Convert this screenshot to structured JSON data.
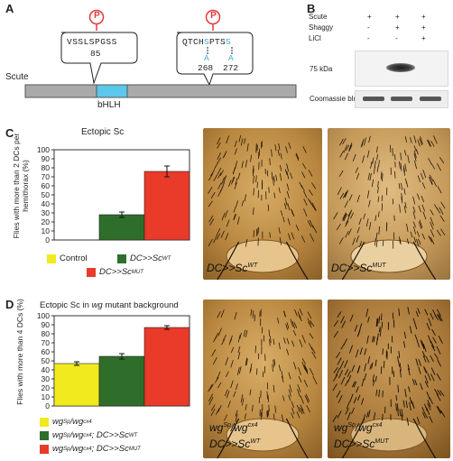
{
  "colors": {
    "control": "#f0ea1e",
    "wt": "#2f6e2a",
    "mut": "#ea3a2a",
    "phospho": "#e23a3a",
    "bhlh": "#5bc7ea",
    "scute_bar": "#aaaaaa"
  },
  "panelA": {
    "letter": "A",
    "protein_label": "Scute",
    "domain_label": "bHLH",
    "phospho_symbol": "P",
    "site1": {
      "seq": "VSSLSPGSS",
      "num": "85"
    },
    "site2": {
      "seq_pre": "QTCH",
      "s1": "S",
      "mid": "PTS",
      "s2": "S",
      "sub1": "A",
      "sub2": "A",
      "num1": "268",
      "num2": "272"
    }
  },
  "panelB": {
    "letter": "B",
    "rows": [
      {
        "label": "Scute",
        "vals": [
          "+",
          "+",
          "+"
        ]
      },
      {
        "label": "Shaggy",
        "vals": [
          "-",
          "+",
          "+"
        ]
      },
      {
        "label": "LiCl",
        "vals": [
          "-",
          "-",
          "+"
        ]
      }
    ],
    "kda_label": "75 kDa",
    "loading_label": "Coomassie blue"
  },
  "panelC": {
    "letter": "C",
    "title": "Ectopic Sc",
    "ylabel": "Flies with more than 2 DCs per hemithorax (%)",
    "legend": [
      "Control",
      "DC>>Sc",
      "DC>>Sc"
    ],
    "legend_sup": [
      "",
      "WT",
      "MUT"
    ],
    "photo_labels": [
      {
        "main": "DC>>Sc",
        "sup": "WT"
      },
      {
        "main": "DC>>Sc",
        "sup": "MUT"
      }
    ]
  },
  "panelD": {
    "letter": "D",
    "title_pre": "Ectopic Sc in ",
    "title_it": "wg",
    "title_post": " mutant background",
    "ylabel": "Flies with more than 4 DCs (%)",
    "legend": [
      {
        "a": "wg",
        "asup": "Sp",
        "b": "/wg",
        "bsup": "cx4",
        "c": "",
        "csup": ""
      },
      {
        "a": "wg",
        "asup": "Sp",
        "b": "/wg",
        "bsup": "cx4",
        "c": "; DC>>Sc",
        "csup": "WT"
      },
      {
        "a": "wg",
        "asup": "Sp",
        "b": "/wg",
        "bsup": "cx4",
        "c": "; DC>>Sc",
        "csup": "MUT"
      }
    ],
    "photo_labels": [
      {
        "l1a": "wg",
        "l1asup": "Sp",
        "l1b": "/wg",
        "l1bsup": "cx4",
        "l2": "DC>>Sc",
        "l2sup": "WT"
      },
      {
        "l1a": "wg",
        "l1asup": "Sp",
        "l1b": "/wg",
        "l1bsup": "cx4",
        "l2": "DC>>Sc",
        "l2sup": "MUT"
      }
    ]
  },
  "chart_data": [
    {
      "type": "bar",
      "title": "Ectopic Sc",
      "ylabel": "Flies with more than 2 DCs per hemithorax (%)",
      "categories": [
        "Control",
        "DC>>ScWT",
        "DC>>ScMUT"
      ],
      "values": [
        0,
        28,
        76
      ],
      "errors": [
        0,
        3,
        6
      ],
      "ylim": [
        0,
        100
      ],
      "yticks": [
        0,
        10,
        20,
        30,
        40,
        50,
        60,
        70,
        80,
        90,
        100
      ],
      "colors": [
        "#f0ea1e",
        "#2f6e2a",
        "#ea3a2a"
      ]
    },
    {
      "type": "bar",
      "title": "Ectopic Sc in wg mutant background",
      "ylabel": "Flies with more than 4 DCs (%)",
      "categories": [
        "wgSp/wgcx4",
        "wgSp/wgcx4; DC>>ScWT",
        "wgSp/wgcx4; DC>>ScMUT"
      ],
      "values": [
        47,
        55,
        87
      ],
      "errors": [
        2,
        3,
        2
      ],
      "ylim": [
        0,
        100
      ],
      "yticks": [
        0,
        10,
        20,
        30,
        40,
        50,
        60,
        70,
        80,
        90,
        100
      ],
      "colors": [
        "#f0ea1e",
        "#2f6e2a",
        "#ea3a2a"
      ]
    }
  ]
}
